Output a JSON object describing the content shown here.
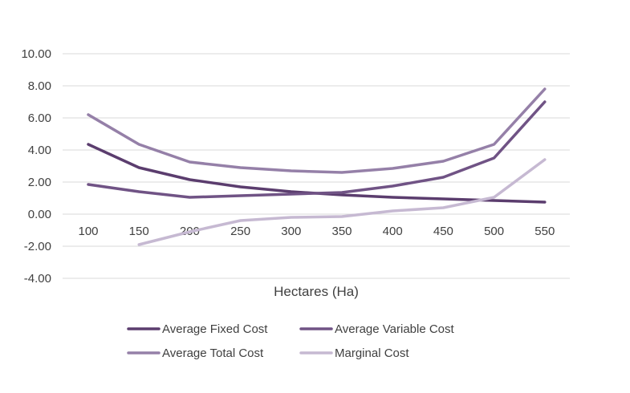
{
  "chart_data": {
    "type": "line",
    "xlabel": "Hectares (Ha)",
    "ylabel": "",
    "title": "",
    "ylim": [
      -4,
      10
    ],
    "y_ticks": [
      "10.00",
      "8.00",
      "6.00",
      "4.00",
      "2.00",
      "0.00",
      "-2.00",
      "-4.00"
    ],
    "y_tick_values": [
      10,
      8,
      6,
      4,
      2,
      0,
      -2,
      -4
    ],
    "categories": [
      "100",
      "150",
      "200",
      "250",
      "300",
      "350",
      "400",
      "450",
      "500",
      "550"
    ],
    "grid": true,
    "legend_position": "bottom",
    "series": [
      {
        "name": "Average Fixed Cost",
        "color": "#5b3d6e",
        "values": [
          4.35,
          2.9,
          2.15,
          1.7,
          1.4,
          1.2,
          1.05,
          0.95,
          0.85,
          0.75
        ]
      },
      {
        "name": "Average Variable Cost",
        "color": "#705385",
        "values": [
          1.85,
          1.4,
          1.05,
          1.15,
          1.25,
          1.35,
          1.75,
          2.3,
          3.5,
          7.0
        ]
      },
      {
        "name": "Average Total Cost",
        "color": "#9580a8",
        "values": [
          6.2,
          4.35,
          3.25,
          2.9,
          2.7,
          2.6,
          2.85,
          3.3,
          4.35,
          7.8
        ]
      },
      {
        "name": "Marginal Cost",
        "color": "#c6b9d2",
        "values": [
          null,
          -1.9,
          -1.1,
          -0.4,
          -0.2,
          -0.15,
          0.2,
          0.4,
          1.05,
          3.4
        ]
      }
    ]
  }
}
